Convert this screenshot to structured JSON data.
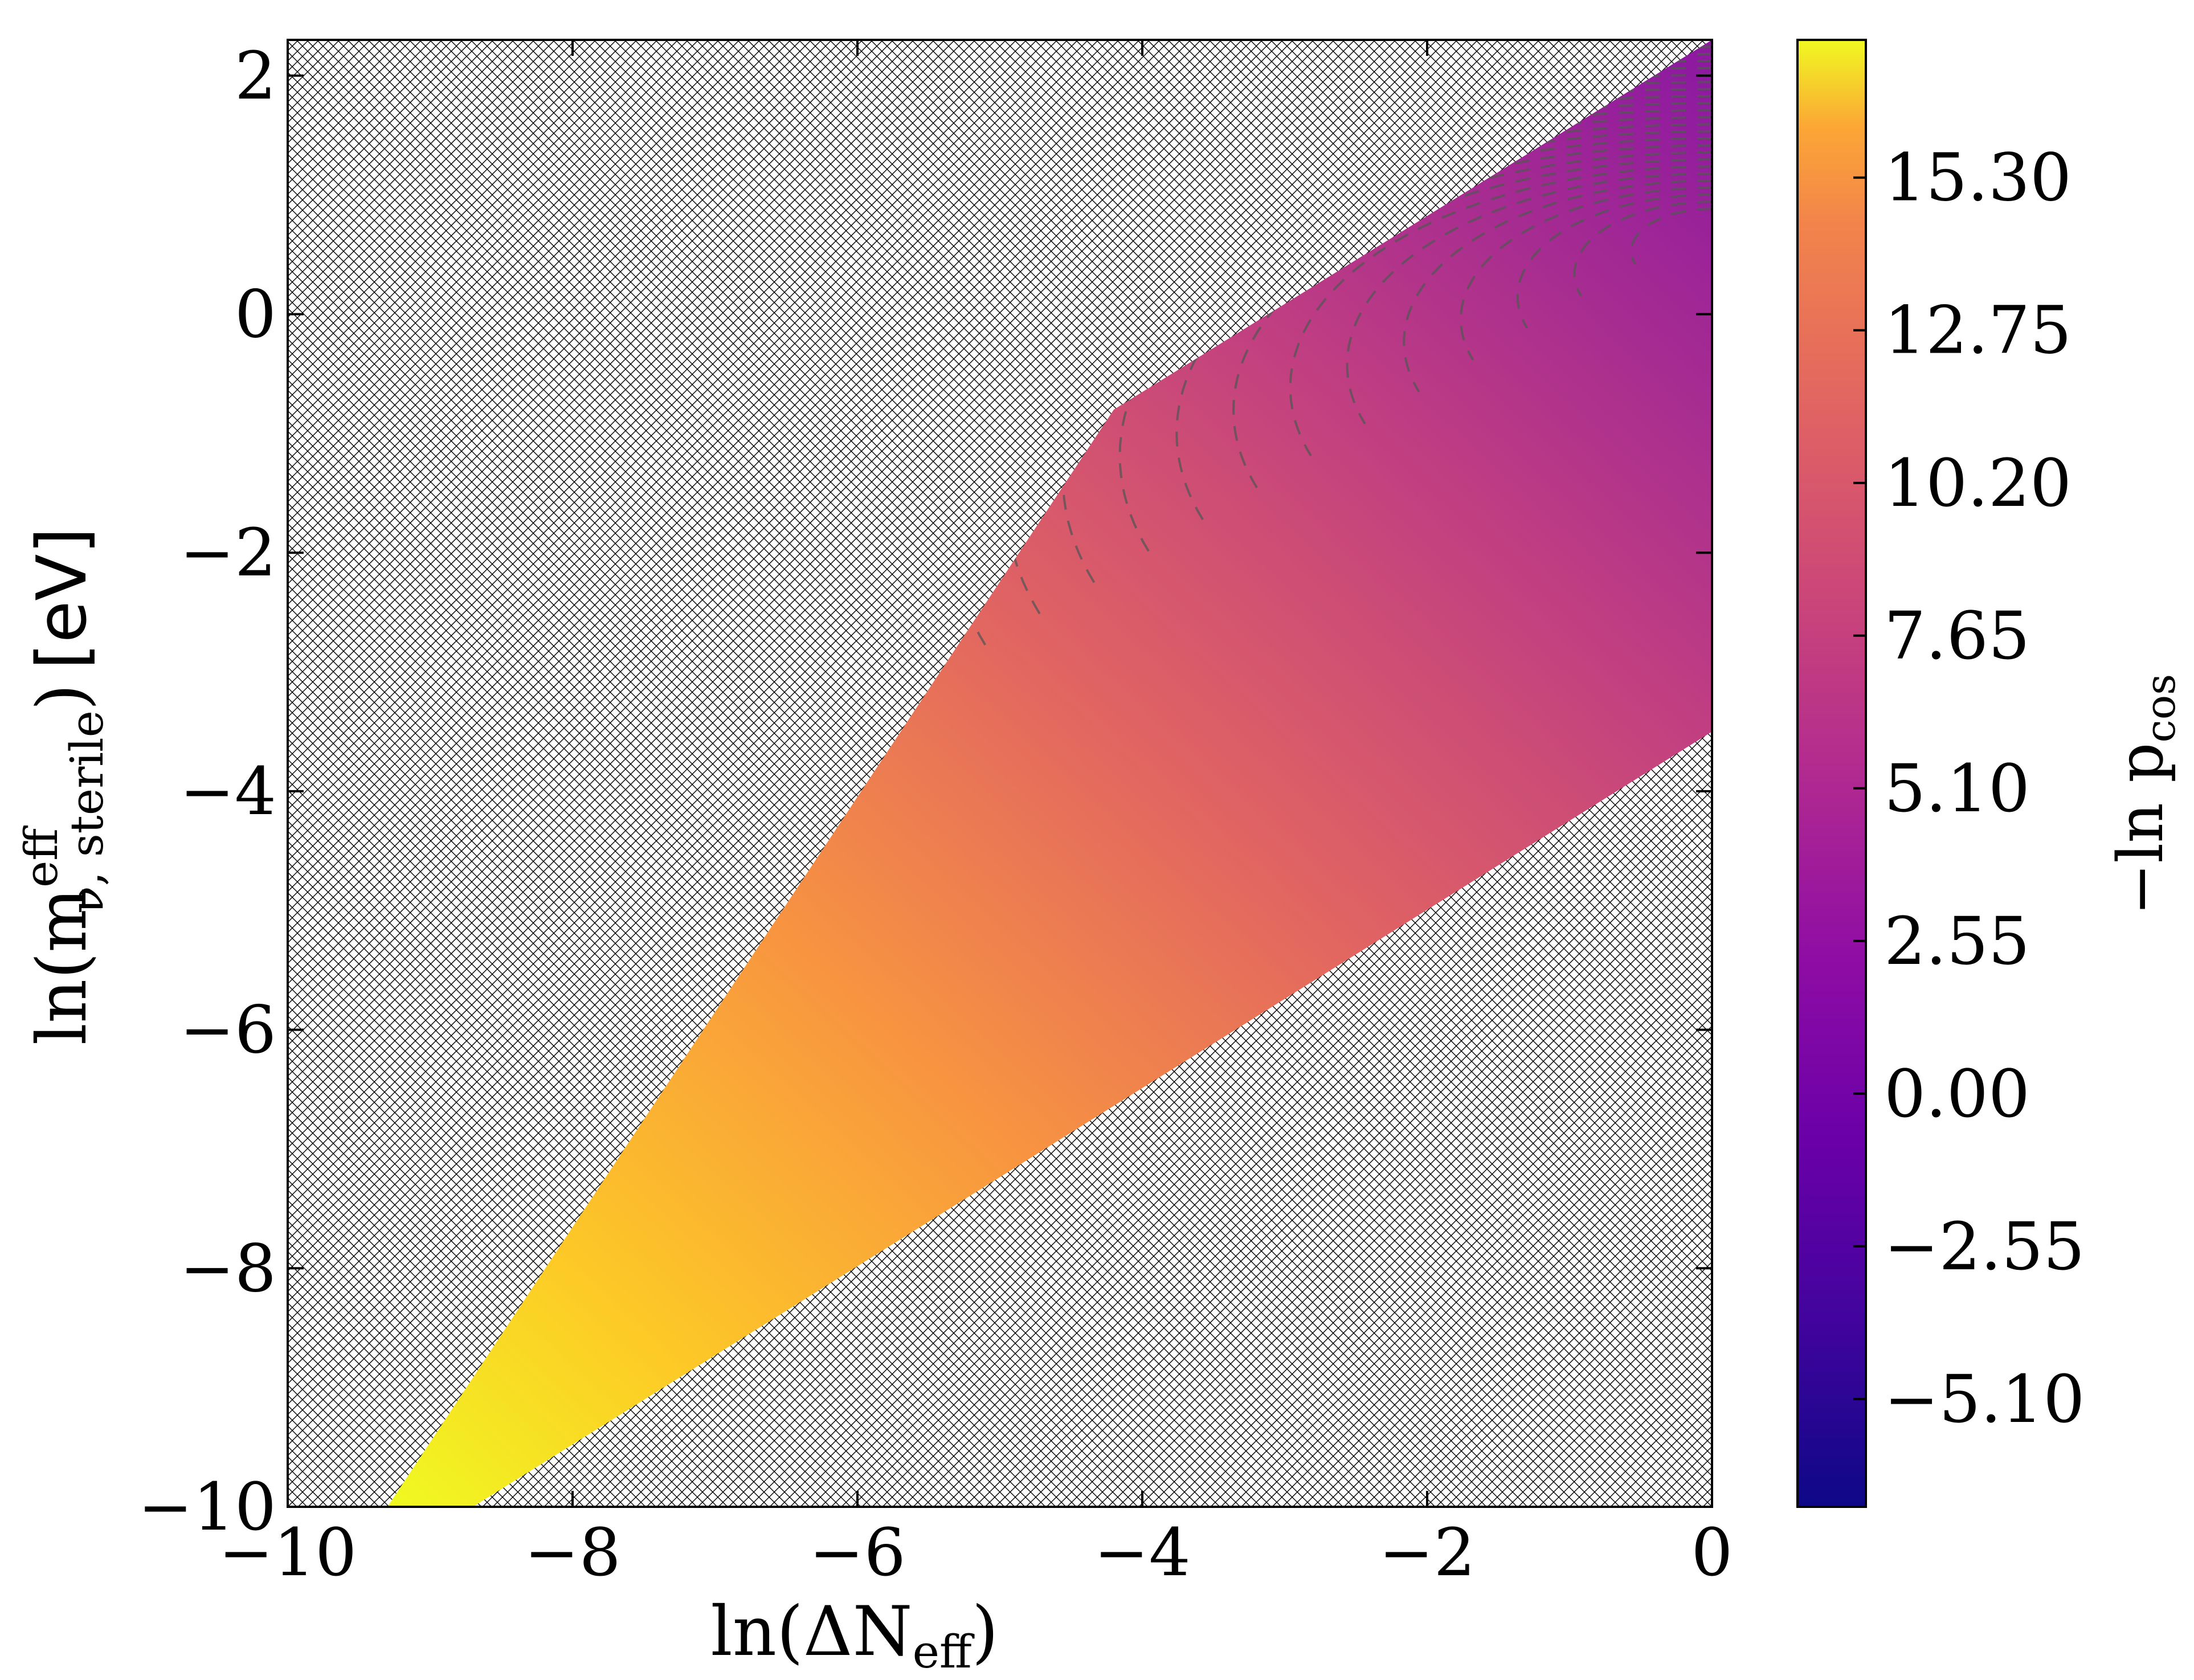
{
  "chart_data": {
    "type": "heatmap",
    "x": {
      "ticks": [
        -10,
        -8,
        -6,
        -4,
        -2,
        0
      ],
      "tick_labels": [
        "−10",
        "−8",
        "−6",
        "−4",
        "−2",
        "0"
      ],
      "range": [
        -10,
        0
      ]
    },
    "y": {
      "ticks": [
        -10,
        -8,
        -6,
        -4,
        -2,
        0,
        2
      ],
      "tick_labels": [
        "−10",
        "−8",
        "−6",
        "−4",
        "−2",
        "0",
        "2"
      ],
      "range": [
        -10,
        2.3
      ]
    },
    "xlabel": {
      "prefix": "ln(ΔN",
      "sub": "eff",
      "suffix": ")"
    },
    "ylabel": {
      "prefix": "ln(m",
      "sup": "eff",
      "sub": "ν, sterile",
      "suffix": ")",
      "unit": "[eV]"
    },
    "colorbar": {
      "label_prefix": "−ln p",
      "label_sub": "cos",
      "range": [
        -6.9,
        17.6
      ],
      "ticks": [
        15.3,
        12.75,
        10.2,
        7.65,
        5.1,
        2.55,
        0.0,
        -2.55,
        -5.1
      ],
      "tick_labels": [
        "15.30",
        "12.75",
        "10.20",
        "7.65",
        "5.10",
        "2.55",
        "0.00",
        "−2.55",
        "−5.10"
      ],
      "colormap": "plasma"
    },
    "allowed_region": {
      "vertices": [
        [
          -9.3,
          -10
        ],
        [
          -4.2,
          -0.8
        ],
        [
          0,
          2.3
        ],
        [
          0,
          -3.5
        ],
        [
          -8.7,
          -10
        ]
      ],
      "fill": "colormap",
      "outside": "crosshatch"
    },
    "contours": {
      "style": "dashed",
      "color": "#555555"
    }
  }
}
